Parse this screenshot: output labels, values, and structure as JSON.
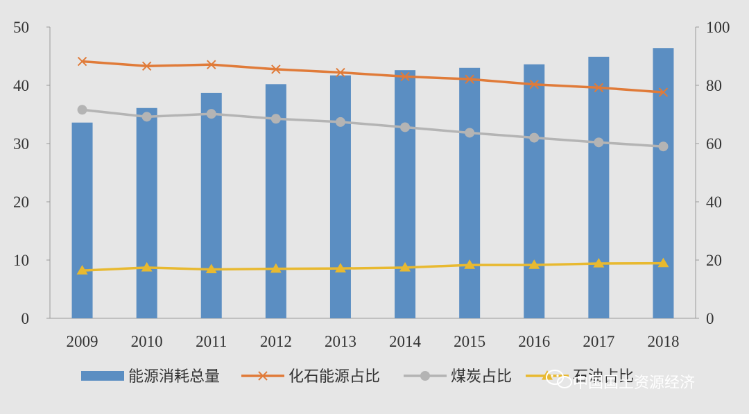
{
  "chart_data": {
    "type": "bar",
    "categories": [
      "2009",
      "2010",
      "2011",
      "2012",
      "2013",
      "2014",
      "2015",
      "2016",
      "2017",
      "2018"
    ],
    "ylim_left": [
      0,
      50
    ],
    "yticks_left": [
      "0",
      "10",
      "20",
      "30",
      "40",
      "50"
    ],
    "ylim_right": [
      0,
      100
    ],
    "yticks_right": [
      "0",
      "20",
      "40",
      "60",
      "80",
      "100"
    ],
    "grid": false,
    "legend_position": "bottom",
    "series": [
      {
        "name": "能源消耗总量",
        "type": "bar",
        "axis": "left",
        "color": "#5b8ec2",
        "values": [
          33.6,
          36.1,
          38.7,
          40.2,
          41.7,
          42.6,
          43.0,
          43.6,
          44.9,
          46.4
        ]
      },
      {
        "name": "化石能源占比",
        "type": "line",
        "axis": "right",
        "color": "#e07b39",
        "marker": "x",
        "values": [
          88.2,
          86.6,
          87.1,
          85.5,
          84.4,
          83.0,
          82.1,
          80.3,
          79.2,
          77.6
        ]
      },
      {
        "name": "煤炭占比",
        "type": "line",
        "axis": "right",
        "color": "#b4b4b4",
        "marker": "circle",
        "values": [
          71.6,
          69.2,
          70.2,
          68.5,
          67.4,
          65.6,
          63.7,
          62.0,
          60.4,
          59.0
        ]
      },
      {
        "name": "石油占比",
        "type": "line",
        "axis": "right",
        "color": "#e8b930",
        "marker": "triangle",
        "values": [
          16.4,
          17.4,
          16.8,
          17.0,
          17.1,
          17.4,
          18.3,
          18.3,
          18.8,
          18.9
        ]
      }
    ]
  },
  "watermark": {
    "text": "中国国土资源经济",
    "icon": "wechat-icon"
  }
}
